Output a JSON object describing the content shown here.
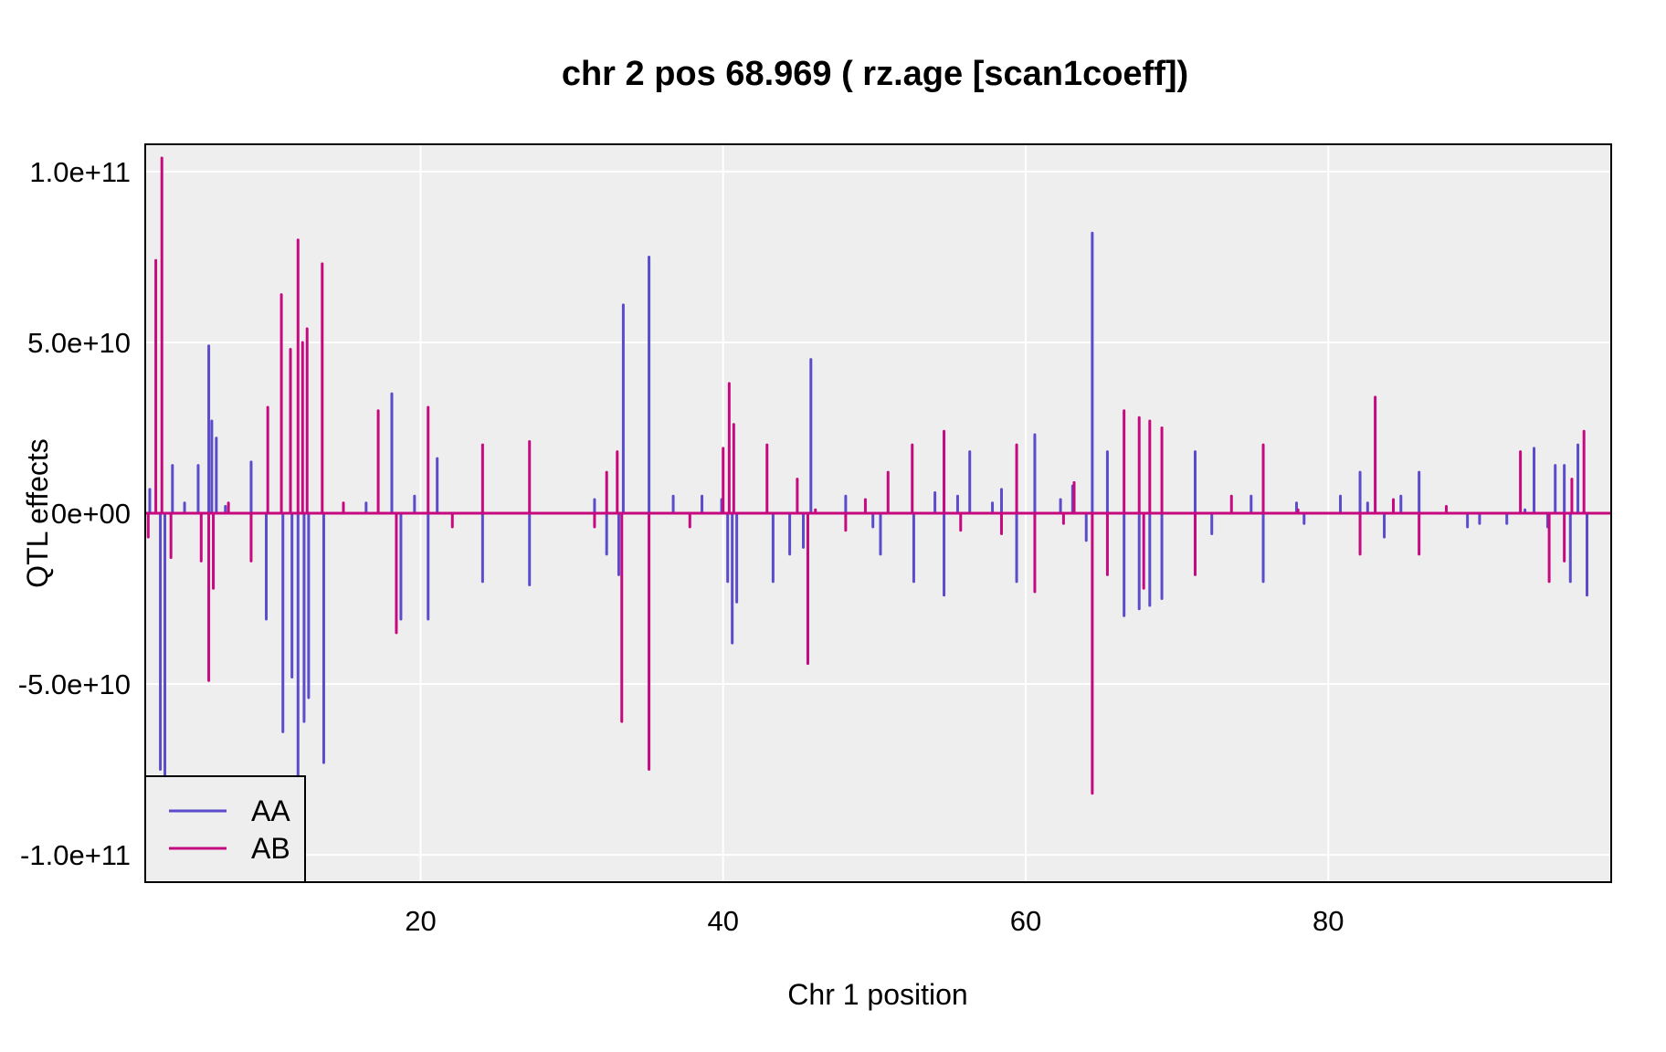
{
  "chart_data": {
    "type": "line",
    "title": "chr 2 pos 68.969 ( rz.age  [scan1coeff])",
    "xlabel": "Chr 1 position",
    "ylabel": "QTL effects",
    "xlim": [
      1.8,
      98.7
    ],
    "ylim": [
      -108000000000.0,
      108000000000.0
    ],
    "x_ticks": [
      20,
      40,
      60,
      80
    ],
    "x_tick_labels": [
      "20",
      "40",
      "60",
      "80"
    ],
    "y_ticks": [
      100000000000.0,
      50000000000.0,
      0,
      -50000000000.0,
      -100000000000.0
    ],
    "y_tick_labels": [
      "1.0e+11",
      "5.0e+10",
      "0e+00",
      "-5.0e+10",
      "-1.0e+11"
    ],
    "grid": true,
    "legend_position": "bottom-left",
    "colors": {
      "AA": "#5b4ccc",
      "AB": "#c6097e",
      "panel_bg": "#eeeeee",
      "grid": "#ffffff"
    },
    "series": [
      {
        "name": "AA",
        "color": "#5b4ccc",
        "spikes": [
          [
            2.1,
            7000000000.0
          ],
          [
            2.8,
            -75000000000.0
          ],
          [
            3.1,
            -78000000000.0
          ],
          [
            3.6,
            14000000000.0
          ],
          [
            4.4,
            3000000000.0
          ],
          [
            5.3,
            14000000000.0
          ],
          [
            6.0,
            49000000000.0
          ],
          [
            6.2,
            27000000000.0
          ],
          [
            6.5,
            22000000000.0
          ],
          [
            7.1,
            2000000000.0
          ],
          [
            8.8,
            15000000000.0
          ],
          [
            9.8,
            -31000000000.0
          ],
          [
            10.9,
            -64000000000.0
          ],
          [
            11.5,
            -48000000000.0
          ],
          [
            11.9,
            -78000000000.0
          ],
          [
            12.3,
            -61000000000.0
          ],
          [
            12.6,
            -54000000000.0
          ],
          [
            13.6,
            -73000000000.0
          ],
          [
            16.4,
            3000000000.0
          ],
          [
            18.1,
            35000000000.0
          ],
          [
            18.7,
            -31000000000.0
          ],
          [
            19.6,
            5000000000.0
          ],
          [
            20.5,
            -31000000000.0
          ],
          [
            21.1,
            16000000000.0
          ],
          [
            24.1,
            -20000000000.0
          ],
          [
            27.2,
            -21000000000.0
          ],
          [
            31.5,
            4000000000.0
          ],
          [
            32.3,
            -12000000000.0
          ],
          [
            33.1,
            -18000000000.0
          ],
          [
            33.4,
            61000000000.0
          ],
          [
            35.1,
            75000000000.0
          ],
          [
            36.7,
            5000000000.0
          ],
          [
            38.6,
            5000000000.0
          ],
          [
            39.9,
            4000000000.0
          ],
          [
            40.3,
            -20000000000.0
          ],
          [
            40.6,
            -38000000000.0
          ],
          [
            40.9,
            -26000000000.0
          ],
          [
            43.3,
            -20000000000.0
          ],
          [
            44.4,
            -12000000000.0
          ],
          [
            45.3,
            -10000000000.0
          ],
          [
            45.8,
            45000000000.0
          ],
          [
            48.1,
            5000000000.0
          ],
          [
            49.9,
            -4000000000.0
          ],
          [
            50.4,
            -12000000000.0
          ],
          [
            52.6,
            -20000000000.0
          ],
          [
            54.0,
            6000000000.0
          ],
          [
            54.6,
            -24000000000.0
          ],
          [
            55.5,
            5000000000.0
          ],
          [
            56.3,
            18000000000.0
          ],
          [
            57.8,
            3000000000.0
          ],
          [
            58.4,
            7000000000.0
          ],
          [
            59.4,
            -20000000000.0
          ],
          [
            60.6,
            23000000000.0
          ],
          [
            62.3,
            4000000000.0
          ],
          [
            63.1,
            8000000000.0
          ],
          [
            64.0,
            -8000000000.0
          ],
          [
            64.4,
            82000000000.0
          ],
          [
            65.4,
            18000000000.0
          ],
          [
            66.5,
            -30000000000.0
          ],
          [
            67.5,
            -28000000000.0
          ],
          [
            68.2,
            -27000000000.0
          ],
          [
            69.0,
            -25000000000.0
          ],
          [
            71.2,
            18000000000.0
          ],
          [
            72.3,
            -6000000000.0
          ],
          [
            74.9,
            5000000000.0
          ],
          [
            75.7,
            -20000000000.0
          ],
          [
            77.9,
            3000000000.0
          ],
          [
            78.4,
            -3000000000.0
          ],
          [
            80.8,
            5000000000.0
          ],
          [
            82.1,
            12000000000.0
          ],
          [
            82.6,
            3000000000.0
          ],
          [
            83.7,
            -7000000000.0
          ],
          [
            84.8,
            5000000000.0
          ],
          [
            86.0,
            12000000000.0
          ],
          [
            89.2,
            -4000000000.0
          ],
          [
            90.0,
            -3000000000.0
          ],
          [
            91.8,
            -3000000000.0
          ],
          [
            93.0,
            1000000000.0
          ],
          [
            93.6,
            19000000000.0
          ],
          [
            94.5,
            -4000000000.0
          ],
          [
            95.0,
            14000000000.0
          ],
          [
            95.6,
            14000000000.0
          ],
          [
            96.0,
            -20000000000.0
          ],
          [
            96.5,
            20000000000.0
          ],
          [
            97.1,
            -24000000000.0
          ]
        ]
      },
      {
        "name": "AB",
        "color": "#c6097e",
        "spikes": [
          [
            2.0,
            -7000000000.0
          ],
          [
            2.5,
            74000000000.0
          ],
          [
            2.9,
            104000000000.0
          ],
          [
            3.5,
            -13000000000.0
          ],
          [
            5.5,
            -14000000000.0
          ],
          [
            6.0,
            -49000000000.0
          ],
          [
            6.3,
            -22000000000.0
          ],
          [
            7.3,
            3000000000.0
          ],
          [
            8.8,
            -14000000000.0
          ],
          [
            9.9,
            31000000000.0
          ],
          [
            10.8,
            64000000000.0
          ],
          [
            11.4,
            48000000000.0
          ],
          [
            11.9,
            80000000000.0
          ],
          [
            12.2,
            50000000000.0
          ],
          [
            12.5,
            54000000000.0
          ],
          [
            13.5,
            73000000000.0
          ],
          [
            14.9,
            3000000000.0
          ],
          [
            17.2,
            30000000000.0
          ],
          [
            18.4,
            -35000000000.0
          ],
          [
            20.5,
            31000000000.0
          ],
          [
            22.1,
            -4000000000.0
          ],
          [
            24.1,
            20000000000.0
          ],
          [
            27.2,
            21000000000.0
          ],
          [
            31.5,
            -4000000000.0
          ],
          [
            32.3,
            12000000000.0
          ],
          [
            33.0,
            18000000000.0
          ],
          [
            33.3,
            -61000000000.0
          ],
          [
            35.1,
            -75000000000.0
          ],
          [
            37.8,
            -4000000000.0
          ],
          [
            40.0,
            19000000000.0
          ],
          [
            40.4,
            38000000000.0
          ],
          [
            40.7,
            26000000000.0
          ],
          [
            42.9,
            20000000000.0
          ],
          [
            44.9,
            10000000000.0
          ],
          [
            45.6,
            -44000000000.0
          ],
          [
            46.1,
            1000000000.0
          ],
          [
            48.1,
            -5000000000.0
          ],
          [
            49.4,
            4000000000.0
          ],
          [
            50.9,
            12000000000.0
          ],
          [
            52.5,
            20000000000.0
          ],
          [
            54.6,
            24000000000.0
          ],
          [
            55.7,
            -5000000000.0
          ],
          [
            58.4,
            -6000000000.0
          ],
          [
            59.4,
            20000000000.0
          ],
          [
            60.6,
            -23000000000.0
          ],
          [
            62.5,
            -3000000000.0
          ],
          [
            63.2,
            9000000000.0
          ],
          [
            64.4,
            -82000000000.0
          ],
          [
            65.4,
            -18000000000.0
          ],
          [
            66.5,
            30000000000.0
          ],
          [
            67.5,
            28000000000.0
          ],
          [
            67.8,
            -22000000000.0
          ],
          [
            68.2,
            27000000000.0
          ],
          [
            69.0,
            25000000000.0
          ],
          [
            71.2,
            -18000000000.0
          ],
          [
            73.6,
            5000000000.0
          ],
          [
            75.7,
            20000000000.0
          ],
          [
            78.0,
            1000000000.0
          ],
          [
            82.1,
            -12000000000.0
          ],
          [
            83.1,
            34000000000.0
          ],
          [
            84.3,
            4000000000.0
          ],
          [
            86.0,
            -12000000000.0
          ],
          [
            87.8,
            2000000000.0
          ],
          [
            92.7,
            18000000000.0
          ],
          [
            94.6,
            -20000000000.0
          ],
          [
            95.6,
            -14000000000.0
          ],
          [
            96.1,
            10000000000.0
          ],
          [
            96.9,
            24000000000.0
          ]
        ]
      }
    ],
    "legend": [
      "AA",
      "AB"
    ]
  }
}
